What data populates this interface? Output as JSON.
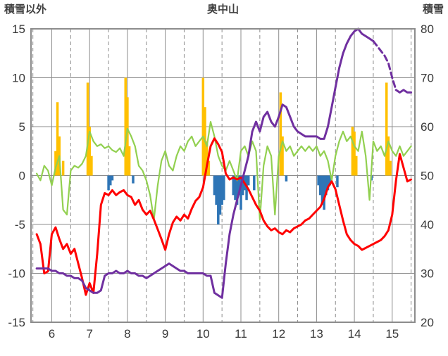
{
  "header": {
    "left_axis_title": "積雪以外",
    "title": "奥中山",
    "right_axis_title": "積雪"
  },
  "chart_data": {
    "type": "line",
    "title": "奥中山",
    "grid_color": "#8c8c8c",
    "tick_label_color": "#383838",
    "left_axis": {
      "label": "積雪以外",
      "min": -15,
      "max": 15,
      "ticks": [
        -15,
        -10,
        -5,
        0,
        5,
        10,
        15
      ]
    },
    "right_axis": {
      "label": "積雪",
      "min": 20,
      "max": 80,
      "ticks": [
        20,
        30,
        40,
        50,
        60,
        70,
        80
      ]
    },
    "x_axis": {
      "min": 5.45,
      "max": 15.6,
      "ticks": [
        6,
        7,
        8,
        9,
        10,
        11,
        12,
        13,
        14,
        15
      ],
      "dashed_gridlines": [
        5.5,
        6.5,
        7.5,
        8.5,
        9.5,
        10.5,
        11.5,
        12.5,
        13.5,
        14.5,
        15.5
      ]
    },
    "x_start": 5.6,
    "x_step": 0.1,
    "series": [
      {
        "name": "green-line",
        "axis": "left",
        "color": "#92D050",
        "width": 2.2,
        "values": [
          0.2,
          -0.5,
          1,
          0.5,
          -1,
          0.8,
          2,
          -3.5,
          -4,
          0.5,
          1,
          0.8,
          1.2,
          2,
          4.5,
          3.5,
          3,
          3.2,
          2.8,
          3,
          2.6,
          2.4,
          2.8,
          2,
          4.8,
          4,
          3,
          1,
          0.5,
          -0.5,
          -2,
          -4.5,
          -1,
          1.5,
          2.5,
          1,
          0.5,
          2,
          3,
          2.5,
          3.5,
          4,
          3,
          3.5,
          4,
          3,
          5.5,
          4,
          2,
          1,
          0.5,
          1.5,
          0.5,
          -0.5,
          2.5,
          3,
          2,
          3.5,
          2.5,
          -4.5,
          1,
          3,
          2,
          -4,
          2,
          3.5,
          2.5,
          3,
          2,
          2.5,
          3,
          2.5,
          3,
          2.5,
          3,
          2,
          2.5,
          1.5,
          -0.5,
          2,
          3.5,
          4.5,
          3.5,
          4,
          3,
          2.5,
          4.5,
          2,
          -2.5,
          3.5,
          2.5,
          3,
          2,
          3.5,
          2.5,
          2,
          3,
          2,
          2.5,
          3
        ]
      },
      {
        "name": "red-line",
        "axis": "left",
        "color": "#FF0000",
        "width": 3,
        "values": [
          -6,
          -7,
          -10,
          -9.8,
          -6,
          -5.3,
          -6.5,
          -7.5,
          -7,
          -8,
          -7.5,
          -9,
          -10.5,
          -12.2,
          -11,
          -12,
          -8,
          -3,
          -1.8,
          -2,
          -1.5,
          -2,
          -1.7,
          -1.5,
          -2,
          -2.2,
          -3,
          -2.5,
          -3.5,
          -4,
          -3.6,
          -4.5,
          -5.5,
          -6.5,
          -7.6,
          -6,
          -4.8,
          -4.2,
          -4.6,
          -4,
          -4.4,
          -3.4,
          -2.6,
          -2.2,
          -1.2,
          1,
          3,
          3.8,
          3.2,
          2.4,
          0.2,
          -0.4,
          -0.2,
          -0.4,
          -0.2,
          -0.8,
          -1.4,
          -2.2,
          -3,
          -3.6,
          -4.6,
          -5.2,
          -5.6,
          -5.4,
          -5.8,
          -6,
          -5.6,
          -5.8,
          -5.4,
          -5.2,
          -5,
          -4.6,
          -4.4,
          -4,
          -3.6,
          -3.2,
          -2.4,
          -1.2,
          -0.6,
          -1.4,
          -3,
          -4.6,
          -6,
          -6.6,
          -7,
          -7.2,
          -7.6,
          -7.4,
          -7.2,
          -7,
          -6.8,
          -6.6,
          -6.2,
          -5.6,
          -4,
          -0.5,
          2.2,
          0.8,
          -0.6,
          -0.4
        ]
      },
      {
        "name": "purple-snow-depth-line",
        "axis": "right",
        "color": "#7030A0",
        "width": 3,
        "dashed_from": 14.5,
        "dashed_to": 15.1,
        "values": [
          31,
          31,
          31,
          31,
          30.5,
          30.5,
          30,
          30,
          29.5,
          29.5,
          29,
          29,
          28.5,
          27,
          26.5,
          26,
          26,
          26.5,
          29.5,
          30,
          30,
          30.5,
          30,
          30,
          30.5,
          30,
          30,
          29.5,
          29.5,
          29,
          29.5,
          30,
          30.5,
          31,
          31.5,
          32,
          31.5,
          31,
          30.5,
          30.5,
          30,
          30,
          30,
          30,
          30,
          29.5,
          29.5,
          26,
          25.5,
          25,
          32,
          38,
          42,
          45,
          48,
          51,
          54,
          59,
          61,
          59,
          62,
          63,
          61,
          60,
          62,
          64.5,
          64,
          62,
          60,
          59,
          58.5,
          58,
          58,
          58,
          58,
          57.5,
          57.5,
          60,
          64,
          68,
          72,
          75,
          77,
          78.5,
          79.5,
          80,
          79,
          78.5,
          78,
          77.5,
          76.5,
          75.5,
          74.5,
          73,
          70,
          67.5,
          67,
          67.5,
          67,
          67
        ]
      }
    ],
    "bars": [
      {
        "name": "orange-bars",
        "axis": "left",
        "color": "#FFC000",
        "bar_width": 3.5,
        "points": [
          [
            6.1,
            2.5
          ],
          [
            6.15,
            7.5
          ],
          [
            6.2,
            4
          ],
          [
            6.3,
            1.5
          ],
          [
            6.95,
            9.5
          ],
          [
            7.0,
            5
          ],
          [
            7.05,
            2
          ],
          [
            7.95,
            10
          ],
          [
            8.0,
            8
          ],
          [
            8.05,
            3
          ],
          [
            10.0,
            10
          ],
          [
            10.05,
            7
          ],
          [
            10.1,
            3.5
          ],
          [
            10.15,
            1.5
          ],
          [
            12.05,
            8.5
          ],
          [
            12.1,
            4
          ],
          [
            13.95,
            5
          ],
          [
            14.0,
            4.5
          ],
          [
            14.05,
            2
          ],
          [
            14.85,
            9.5
          ],
          [
            14.9,
            4
          ],
          [
            14.95,
            1.5
          ]
        ]
      },
      {
        "name": "blue-bars",
        "axis": "left",
        "color": "#2E75B6",
        "bar_width": 3.5,
        "points": [
          [
            7.5,
            -1.5
          ],
          [
            7.55,
            -1
          ],
          [
            7.6,
            -0.5
          ],
          [
            8.15,
            -0.8
          ],
          [
            10.3,
            -2
          ],
          [
            10.35,
            -3
          ],
          [
            10.4,
            -5
          ],
          [
            10.45,
            -4
          ],
          [
            10.5,
            -3
          ],
          [
            10.55,
            -2.5
          ],
          [
            10.8,
            -2
          ],
          [
            10.85,
            -2.5
          ],
          [
            10.9,
            -3
          ],
          [
            10.95,
            -2
          ],
          [
            11.0,
            -3.5
          ],
          [
            11.05,
            -2
          ],
          [
            11.1,
            -1.5
          ],
          [
            11.15,
            -2.5
          ],
          [
            11.2,
            -1
          ],
          [
            11.35,
            -1.5
          ],
          [
            12.2,
            -0.6
          ],
          [
            13.05,
            -1
          ],
          [
            13.1,
            -2
          ],
          [
            13.15,
            -3
          ],
          [
            13.2,
            -3.5
          ],
          [
            13.25,
            -2
          ],
          [
            13.3,
            -1.5
          ],
          [
            13.35,
            -1
          ],
          [
            13.55,
            -1.2
          ],
          [
            14.45,
            -0.5
          ]
        ]
      }
    ]
  }
}
